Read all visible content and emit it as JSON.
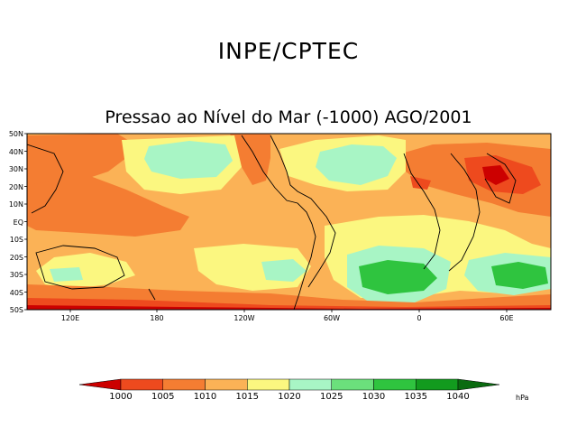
{
  "header": {
    "org": "INPE/CPTEC",
    "subtitle": "Pressao ao Nível do Mar (-1000) AGO/2001"
  },
  "map": {
    "lat_ticks": [
      "50N",
      "40N",
      "30N",
      "20N",
      "10N",
      "EQ",
      "10S",
      "20S",
      "30S",
      "40S",
      "50S"
    ],
    "lon_ticks": [
      "120E",
      "180",
      "120W",
      "60W",
      "0",
      "60E"
    ]
  },
  "colorbar": {
    "unit": "hPa",
    "labels": [
      "1000",
      "1005",
      "1010",
      "1015",
      "1020",
      "1025",
      "1030",
      "1035",
      "1040"
    ],
    "colors": [
      "#cc0000",
      "#ee4a1e",
      "#f47d32",
      "#fbb256",
      "#fbf780",
      "#a8f5c5",
      "#6be07c",
      "#2fc43f",
      "#129b1e",
      "#0a6b10"
    ]
  }
}
